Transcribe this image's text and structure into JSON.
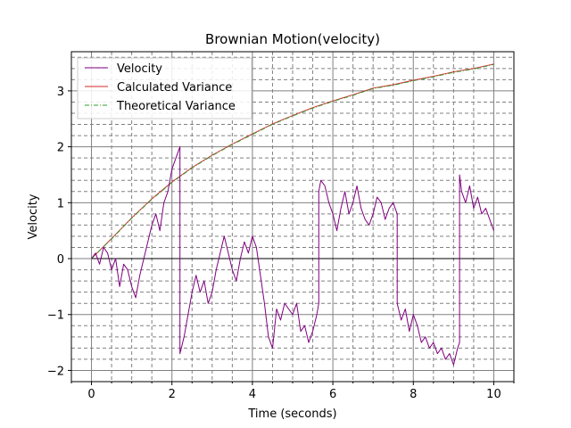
{
  "chart_data": {
    "type": "line",
    "title": "Brownian Motion(velocity)",
    "xlabel": "Time (seconds)",
    "ylabel": "Velocity",
    "xlim": [
      -0.5,
      10.5
    ],
    "ylim": [
      -2.2,
      3.7
    ],
    "xticks": [
      0,
      2,
      4,
      6,
      8,
      10
    ],
    "xtick_labels": [
      "0",
      "2",
      "4",
      "6",
      "8",
      "10"
    ],
    "yticks": [
      -2,
      -1,
      0,
      1,
      2,
      3
    ],
    "ytick_labels": [
      "−2",
      "−1",
      "0",
      "1",
      "2",
      "3"
    ],
    "grid": true,
    "legend_position": "top-left",
    "series": [
      {
        "name": "Velocity",
        "color": "#800080",
        "style": "solid",
        "x": [
          0,
          0.1,
          0.2,
          0.3,
          0.4,
          0.5,
          0.6,
          0.7,
          0.8,
          0.9,
          1.0,
          1.1,
          1.2,
          1.3,
          1.4,
          1.5,
          1.6,
          1.7,
          1.8,
          1.9,
          2.0,
          2.1,
          2.2,
          2.2,
          2.3,
          2.4,
          2.5,
          2.6,
          2.7,
          2.8,
          2.9,
          3.0,
          3.1,
          3.2,
          3.3,
          3.4,
          3.5,
          3.6,
          3.7,
          3.8,
          3.9,
          4.0,
          4.1,
          4.2,
          4.3,
          4.4,
          4.5,
          4.6,
          4.7,
          4.8,
          4.9,
          5.0,
          5.1,
          5.2,
          5.3,
          5.4,
          5.5,
          5.6,
          5.65,
          5.65,
          5.7,
          5.8,
          5.9,
          6.0,
          6.1,
          6.2,
          6.3,
          6.4,
          6.5,
          6.6,
          6.7,
          6.8,
          6.9,
          7.0,
          7.1,
          7.2,
          7.3,
          7.4,
          7.5,
          7.6,
          7.6,
          7.7,
          7.8,
          7.9,
          8.0,
          8.1,
          8.2,
          8.3,
          8.4,
          8.5,
          8.6,
          8.7,
          8.8,
          8.9,
          9.0,
          9.1,
          9.15,
          9.15,
          9.2,
          9.3,
          9.4,
          9.5,
          9.6,
          9.7,
          9.8,
          9.9,
          10.0
        ],
        "y": [
          0.0,
          0.1,
          -0.1,
          0.2,
          0.1,
          -0.2,
          0.0,
          -0.5,
          -0.1,
          -0.2,
          -0.5,
          -0.7,
          -0.3,
          0.0,
          0.3,
          0.6,
          0.8,
          0.5,
          1.0,
          1.2,
          1.6,
          1.8,
          2.0,
          -1.7,
          -1.4,
          -1.0,
          -0.6,
          -0.3,
          -0.6,
          -0.4,
          -0.8,
          -0.6,
          -0.2,
          0.1,
          0.4,
          0.1,
          -0.2,
          -0.4,
          0.0,
          0.3,
          0.1,
          0.4,
          0.2,
          -0.3,
          -0.8,
          -1.4,
          -1.6,
          -0.9,
          -1.1,
          -0.8,
          -0.9,
          -1.0,
          -0.8,
          -1.3,
          -1.2,
          -1.5,
          -1.3,
          -1.0,
          -0.8,
          1.2,
          1.4,
          1.3,
          1.0,
          0.8,
          0.5,
          0.9,
          1.2,
          0.8,
          1.0,
          1.3,
          0.9,
          0.7,
          0.6,
          0.8,
          1.1,
          1.0,
          0.7,
          0.9,
          1.0,
          0.8,
          -0.8,
          -1.1,
          -0.9,
          -1.3,
          -1.0,
          -1.2,
          -1.5,
          -1.4,
          -1.6,
          -1.5,
          -1.7,
          -1.6,
          -1.8,
          -1.7,
          -1.9,
          -1.6,
          -1.5,
          1.5,
          1.2,
          1.0,
          1.3,
          0.9,
          1.1,
          0.8,
          0.9,
          0.7,
          0.5
        ]
      },
      {
        "name": "Calculated Variance",
        "color": "#d62728",
        "style": "solid",
        "x": [
          0,
          0.5,
          1,
          1.5,
          2,
          2.5,
          3,
          3.5,
          4,
          4.5,
          5,
          5.5,
          6,
          6.5,
          7,
          7.5,
          8,
          8.5,
          9,
          9.5,
          10
        ],
        "y": [
          0.0,
          0.36,
          0.73,
          1.07,
          1.37,
          1.63,
          1.85,
          2.05,
          2.23,
          2.41,
          2.56,
          2.7,
          2.82,
          2.93,
          3.05,
          3.11,
          3.19,
          3.26,
          3.34,
          3.4,
          3.48
        ]
      },
      {
        "name": "Theoretical Variance",
        "color": "#2ca02c",
        "style": "dashdot",
        "x": [
          0,
          0.5,
          1,
          1.5,
          2,
          2.5,
          3,
          3.5,
          4,
          4.5,
          5,
          5.5,
          6,
          6.5,
          7,
          7.5,
          8,
          8.5,
          9,
          9.5,
          10
        ],
        "y": [
          0.0,
          0.35,
          0.72,
          1.06,
          1.36,
          1.62,
          1.84,
          2.04,
          2.22,
          2.4,
          2.55,
          2.69,
          2.81,
          2.92,
          3.04,
          3.1,
          3.18,
          3.25,
          3.33,
          3.39,
          3.47
        ]
      }
    ]
  }
}
